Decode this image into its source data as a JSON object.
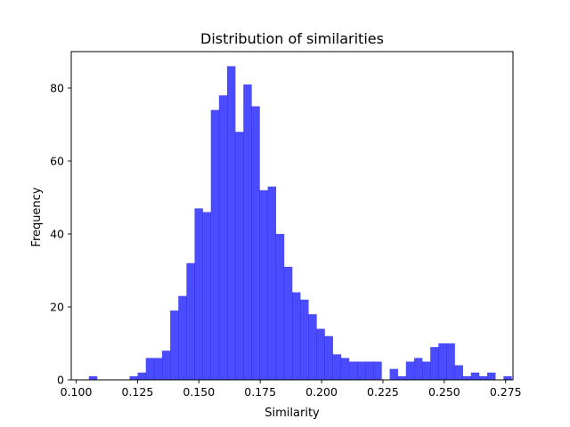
{
  "chart_data": {
    "type": "bar",
    "subtype": "histogram",
    "title": "Distribution of similarities",
    "xlabel": "Similarity",
    "ylabel": "Frequency",
    "xlim": [
      0.098,
      0.278
    ],
    "ylim": [
      0,
      90
    ],
    "xticks": [
      0.1,
      0.125,
      0.15,
      0.175,
      0.2,
      0.225,
      0.25,
      0.275
    ],
    "xtick_labels": [
      "0.100",
      "0.125",
      "0.150",
      "0.175",
      "0.200",
      "0.225",
      "0.250",
      "0.275"
    ],
    "yticks": [
      0,
      20,
      40,
      60,
      80
    ],
    "ytick_labels": [
      "0",
      "20",
      "40",
      "60",
      "80"
    ],
    "grid": false,
    "legend": "none",
    "bar_color": "#0000ff",
    "bar_opacity": 0.7,
    "bin_start": 0.1052,
    "bin_width": 0.003312,
    "values": [
      1,
      0,
      0,
      0,
      0,
      1,
      2,
      6,
      6,
      8,
      19,
      23,
      32,
      47,
      46,
      74,
      78,
      86,
      68,
      81,
      75,
      52,
      53,
      40,
      31,
      24,
      22,
      18,
      14,
      12,
      7,
      6,
      5,
      5,
      5,
      5,
      0,
      3,
      1,
      5,
      6,
      5,
      9,
      10,
      10,
      4,
      1,
      2,
      1,
      2,
      0,
      1
    ]
  }
}
